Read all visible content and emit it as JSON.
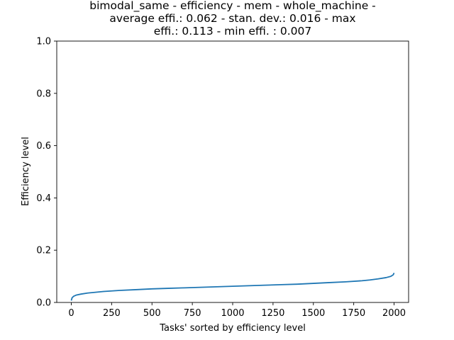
{
  "chart_data": {
    "type": "line",
    "title": [
      "bimodal_same - efficiency - mem - whole_machine -",
      "average effi.: 0.062 - stan. dev.: 0.016 - max",
      "effi.: 0.113 - min effi. : 0.007"
    ],
    "xlabel": "Tasks' sorted by efficiency level",
    "ylabel": "Efficiency level",
    "xlim": [
      -90,
      2090
    ],
    "ylim": [
      0,
      1.0
    ],
    "xticks": [
      0,
      250,
      500,
      750,
      1000,
      1250,
      1500,
      1750,
      2000
    ],
    "yticks": [
      0.0,
      0.2,
      0.4,
      0.6,
      0.8,
      1.0
    ],
    "xtick_labels": [
      "0",
      "250",
      "500",
      "750",
      "1000",
      "1250",
      "1500",
      "1750",
      "2000"
    ],
    "ytick_labels": [
      "0.0",
      "0.2",
      "0.4",
      "0.6",
      "0.8",
      "1.0"
    ],
    "grid": false,
    "series": [
      {
        "color": "#1f77b4",
        "x": [
          0,
          5,
          15,
          30,
          60,
          100,
          150,
          200,
          250,
          300,
          400,
          500,
          600,
          700,
          800,
          900,
          1000,
          1100,
          1200,
          1300,
          1400,
          1500,
          1600,
          1700,
          1800,
          1850,
          1900,
          1950,
          1980,
          1995,
          2000
        ],
        "y": [
          0.007,
          0.018,
          0.024,
          0.028,
          0.032,
          0.036,
          0.039,
          0.042,
          0.044,
          0.046,
          0.049,
          0.052,
          0.054,
          0.056,
          0.058,
          0.06,
          0.062,
          0.064,
          0.066,
          0.068,
          0.07,
          0.073,
          0.076,
          0.079,
          0.083,
          0.086,
          0.09,
          0.095,
          0.1,
          0.106,
          0.113
        ]
      }
    ]
  }
}
